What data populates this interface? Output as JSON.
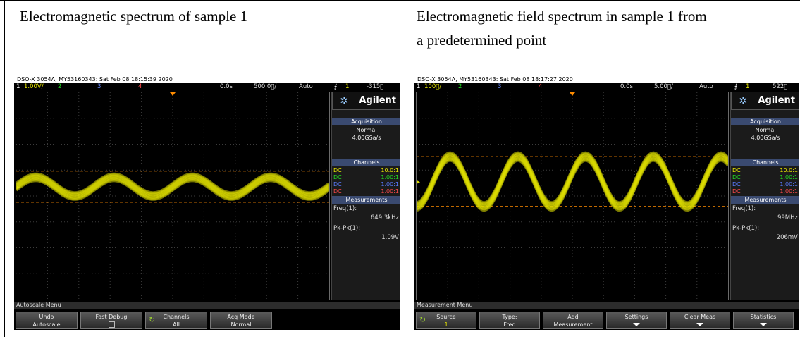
{
  "headers": {
    "left": "Electromagnetic spectrum of sample 1",
    "right_line1": "Electromagnetic field spectrum in sample 1 from",
    "right_line2": "a predetermined point"
  },
  "scopes": [
    {
      "id": "left",
      "info": "DSO-X 3054A, MY53160343: Sat Feb 08 18:15:39 2020",
      "channel_bar": {
        "ch1": "1",
        "ch1_scale": "1.00V/",
        "ch2": "2",
        "ch3": "3",
        "ch4": "4",
        "delay": "0.0s",
        "timebase": "500.0\u0000/",
        "mode": "Auto",
        "trig_ch": "1",
        "trig_level": "-315\u0000"
      },
      "brand": "Agilent",
      "acq_title": "Acquisition",
      "acq_mode": "Normal",
      "acq_rate": "4.00GSa/s",
      "channels_title": "Channels",
      "channels": [
        {
          "coupling": "DC",
          "ratio": "10.0:1",
          "color": "#e8e800"
        },
        {
          "coupling": "DC",
          "ratio": "1.00:1",
          "color": "#22dd22"
        },
        {
          "coupling": "DC",
          "ratio": "1.00:1",
          "color": "#3a6bff"
        },
        {
          "coupling": "DC",
          "ratio": "1.00:1",
          "color": "#ff3a3a"
        }
      ],
      "meas_title": "Measurements",
      "meas1_label": "Freq(1):",
      "meas1_value": "649.3kHz",
      "meas2_label": "Pk-Pk(1):",
      "meas2_value": "1.09V",
      "menu_title": "Autoscale Menu",
      "softkeys": [
        {
          "l1": "Undo",
          "l2": "Autoscale",
          "kind": "text"
        },
        {
          "l1": "Fast Debug",
          "l2": "",
          "kind": "check"
        },
        {
          "l1": "Channels",
          "l2": "All",
          "kind": "knob"
        },
        {
          "l1": "Acq Mode",
          "l2": "Normal",
          "kind": "text"
        }
      ]
    },
    {
      "id": "right",
      "info": "DSO-X 3054A, MY53160343: Sat Feb 08 18:17:27 2020",
      "channel_bar": {
        "ch1": "1",
        "ch1_scale": "100\u0000/",
        "ch2": "2",
        "ch3": "3",
        "ch4": "4",
        "delay": "0.0s",
        "timebase": "5.00\u0000/",
        "mode": "Auto",
        "trig_ch": "1",
        "trig_level": "522\u0000"
      },
      "brand": "Agilent",
      "acq_title": "Acquisition",
      "acq_mode": "Normal",
      "acq_rate": "4.00GSa/s",
      "channels_title": "Channels",
      "channels": [
        {
          "coupling": "DC",
          "ratio": "10.0:1",
          "color": "#e8e800"
        },
        {
          "coupling": "DC",
          "ratio": "1.00:1",
          "color": "#22dd22"
        },
        {
          "coupling": "DC",
          "ratio": "1.00:1",
          "color": "#3a6bff"
        },
        {
          "coupling": "DC",
          "ratio": "1.00:1",
          "color": "#ff3a3a"
        }
      ],
      "meas_title": "Measurements",
      "meas1_label": "Freq(1):",
      "meas1_value": "99MHz",
      "meas2_label": "Pk-Pk(1):",
      "meas2_value": "206mV",
      "menu_title": "Measurement Menu",
      "softkeys": [
        {
          "l1": "Source",
          "l2": "1",
          "kind": "knob"
        },
        {
          "l1": "Type:",
          "l2": "Freq",
          "kind": "text"
        },
        {
          "l1": "Add",
          "l2": "Measurement",
          "kind": "text"
        },
        {
          "l1": "Settings",
          "l2": "",
          "kind": "arrow"
        },
        {
          "l1": "Clear Meas",
          "l2": "",
          "kind": "arrow"
        },
        {
          "l1": "Statistics",
          "l2": "",
          "kind": "arrow"
        }
      ]
    }
  ],
  "colors": {
    "trace": "#e0e000",
    "cursor": "#ff8c00",
    "grid": "#3c3c3c"
  }
}
